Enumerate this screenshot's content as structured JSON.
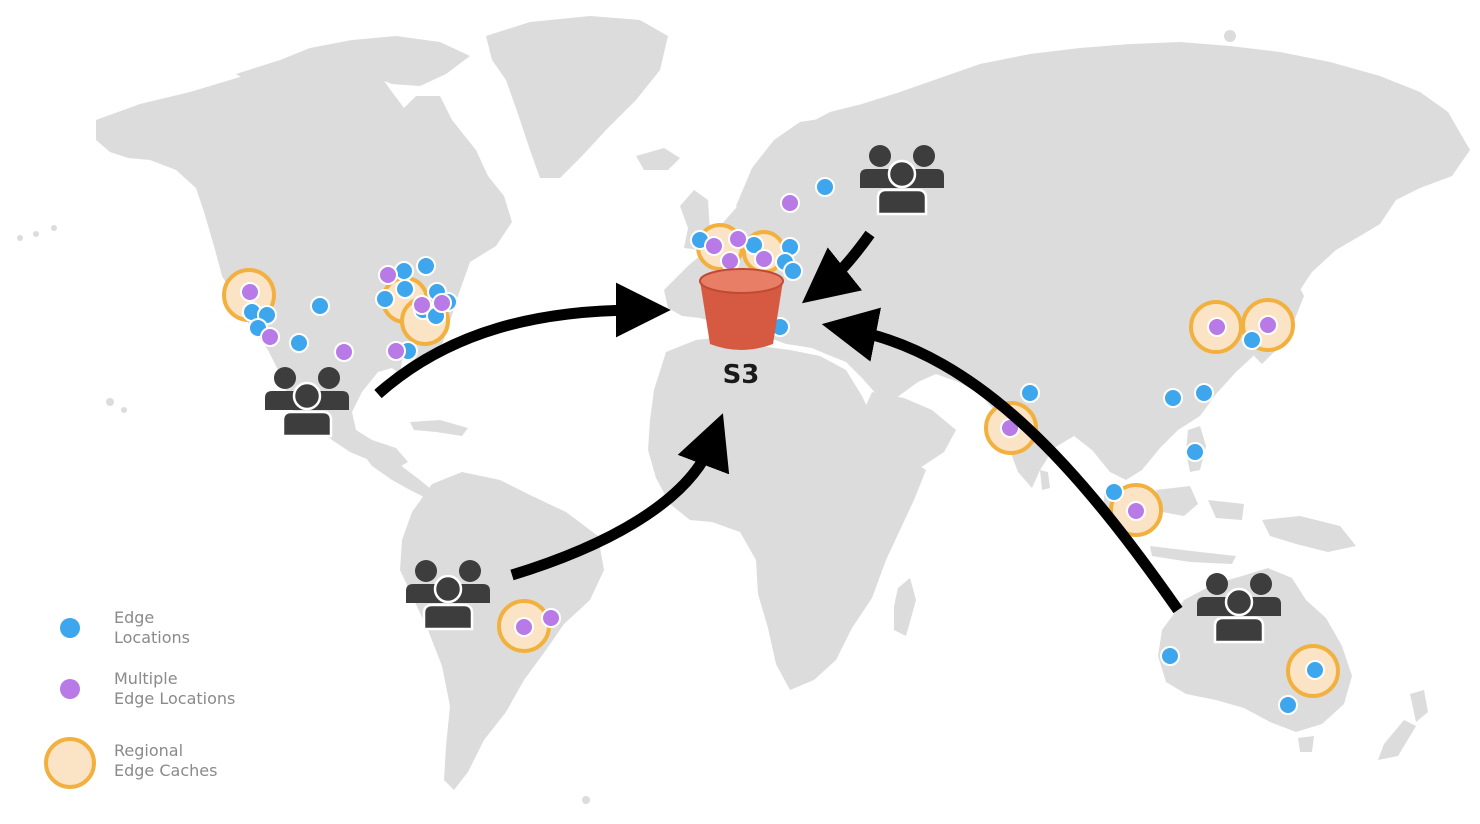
{
  "bucket": {
    "label": "S3",
    "color": "#d65a42",
    "rim_color": "#e87e66"
  },
  "colors": {
    "land": "#dcdcdc",
    "edge_location": "#3ea6ec",
    "multiple_edge": "#b77ae6",
    "regional_cache_fill": "#fbe3c6",
    "regional_cache_ring": "#f2b13f",
    "user_icon": "#3d3d3d",
    "arrow": "#000000"
  },
  "legend": {
    "edge": {
      "line1": "Edge",
      "line2": "Locations",
      "icon": "edge-location-dot"
    },
    "multiple": {
      "line1": "Multiple",
      "line2": "Edge Locations",
      "icon": "multiple-edge-dot"
    },
    "regional": {
      "line1": "Regional",
      "line2": "Edge Caches",
      "icon": "regional-cache-ring"
    }
  },
  "user_groups": [
    {
      "id": "north-america",
      "icon": "user-group-icon"
    },
    {
      "id": "south-america",
      "icon": "user-group-icon"
    },
    {
      "id": "eastern-europe",
      "icon": "user-group-icon"
    },
    {
      "id": "australia",
      "icon": "user-group-icon"
    }
  ]
}
